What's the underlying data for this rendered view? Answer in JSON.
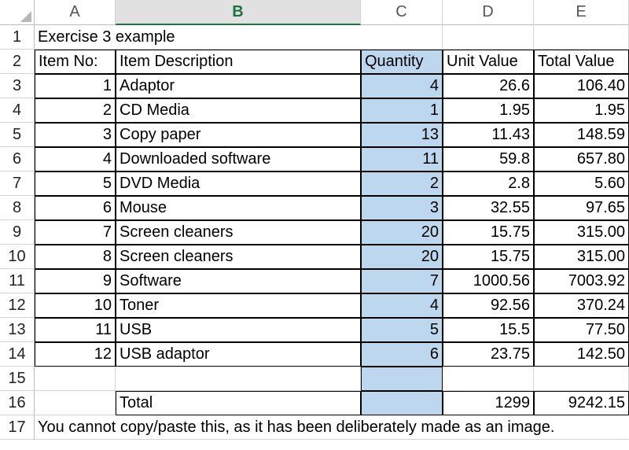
{
  "columns": [
    "A",
    "B",
    "C",
    "D",
    "E"
  ],
  "selected_column": "B",
  "title": "Exercise 3 example",
  "headers": {
    "item_no": "Item No:",
    "description": "Item Description",
    "quantity": "Quantity",
    "unit_value": "Unit Value",
    "total_value": "Total Value"
  },
  "rows": [
    {
      "n": "3",
      "item": "1",
      "desc": "Adaptor",
      "qty": "4",
      "unit": "26.6",
      "total": "106.40"
    },
    {
      "n": "4",
      "item": "2",
      "desc": "CD Media",
      "qty": "1",
      "unit": "1.95",
      "total": "1.95"
    },
    {
      "n": "5",
      "item": "3",
      "desc": "Copy paper",
      "qty": "13",
      "unit": "11.43",
      "total": "148.59"
    },
    {
      "n": "6",
      "item": "4",
      "desc": "Downloaded software",
      "qty": "11",
      "unit": "59.8",
      "total": "657.80"
    },
    {
      "n": "7",
      "item": "5",
      "desc": "DVD Media",
      "qty": "2",
      "unit": "2.8",
      "total": "5.60"
    },
    {
      "n": "8",
      "item": "6",
      "desc": "Mouse",
      "qty": "3",
      "unit": "32.55",
      "total": "97.65"
    },
    {
      "n": "9",
      "item": "7",
      "desc": "Screen cleaners",
      "qty": "20",
      "unit": "15.75",
      "total": "315.00"
    },
    {
      "n": "10",
      "item": "8",
      "desc": "Screen cleaners",
      "qty": "20",
      "unit": "15.75",
      "total": "315.00"
    },
    {
      "n": "11",
      "item": "9",
      "desc": "Software",
      "qty": "7",
      "unit": "1000.56",
      "total": "7003.92"
    },
    {
      "n": "12",
      "item": "10",
      "desc": "Toner",
      "qty": "4",
      "unit": "92.56",
      "total": "370.24"
    },
    {
      "n": "13",
      "item": "11",
      "desc": "USB",
      "qty": "5",
      "unit": "15.5",
      "total": "77.50"
    },
    {
      "n": "14",
      "item": "12",
      "desc": "USB adaptor",
      "qty": "6",
      "unit": "23.75",
      "total": "142.50"
    }
  ],
  "row_numbers": {
    "title": "1",
    "header": "2",
    "blank": "15",
    "total": "16",
    "note": "17"
  },
  "total_row": {
    "label": "Total",
    "unit_total": "1299",
    "grand_total": "9242.15"
  },
  "note": "You cannot copy/paste this, as it has been deliberately made as an image.",
  "colors": {
    "quantity_fill": "#bdd7ee",
    "selected_header": "#217346"
  }
}
